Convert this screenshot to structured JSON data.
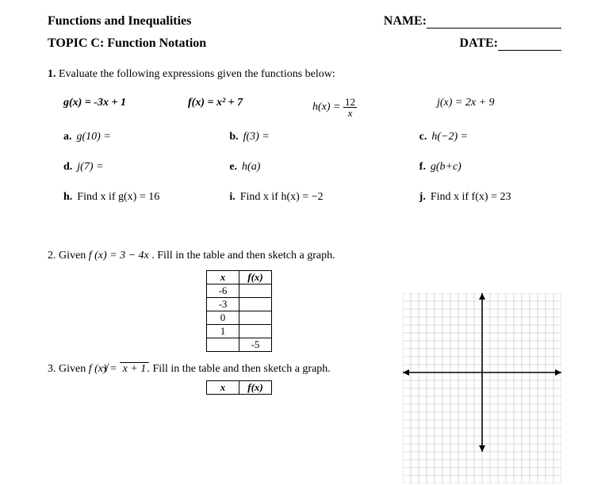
{
  "header": {
    "title": "Functions and Inequalities",
    "name_label": "NAME:",
    "topic": "TOPIC C: Function Notation",
    "date_label": "DATE:"
  },
  "q1": {
    "number": "1.",
    "text": "Evaluate the following expressions given the functions below:",
    "def_g": "g(x) = -3x + 1",
    "def_f": "f(x) = x² + 7",
    "def_h_pre": "h(x) =",
    "def_h_num": "12",
    "def_h_den": "x",
    "def_j": "j(x) = 2x + 9",
    "a": {
      "label": "a.",
      "text": "g(10) ="
    },
    "b": {
      "label": "b.",
      "text": "f(3) ="
    },
    "c": {
      "label": "c.",
      "text": "h(−2) ="
    },
    "d": {
      "label": "d.",
      "text": "j(7) ="
    },
    "e": {
      "label": "e.",
      "text": "h(a)"
    },
    "f": {
      "label": "f.",
      "text": "g(b+c)"
    },
    "h": {
      "label": "h.",
      "text": "Find x if g(x) = 16"
    },
    "i": {
      "label": "i.",
      "text": "Find x if h(x) = −2"
    },
    "j": {
      "label": "j.",
      "text": "Find x if f(x) = 23"
    }
  },
  "q2": {
    "prefix": "2.  Given ",
    "fn": "f (x) = 3 − 4x",
    "suffix": ".  Fill in the table and then sketch a graph.",
    "table": {
      "col1": "x",
      "col2": "f(x)",
      "rows_x": [
        "-6",
        "-3",
        "0",
        "1",
        ""
      ],
      "rows_fx": [
        "",
        "",
        "",
        "",
        "-5"
      ]
    }
  },
  "q3": {
    "prefix": "3.  Given ",
    "fn_pre": "f (x) = ",
    "fn_rad": "√(x + 1)",
    "suffix": ".  Fill in the table and then sketch a graph.",
    "table": {
      "col1": "x",
      "col2": "f(x)"
    }
  },
  "graph": {
    "size": 200,
    "cells": 20,
    "grid_color": "#bfbfbf",
    "axis_color": "#000000",
    "bg": "#ffffff"
  }
}
